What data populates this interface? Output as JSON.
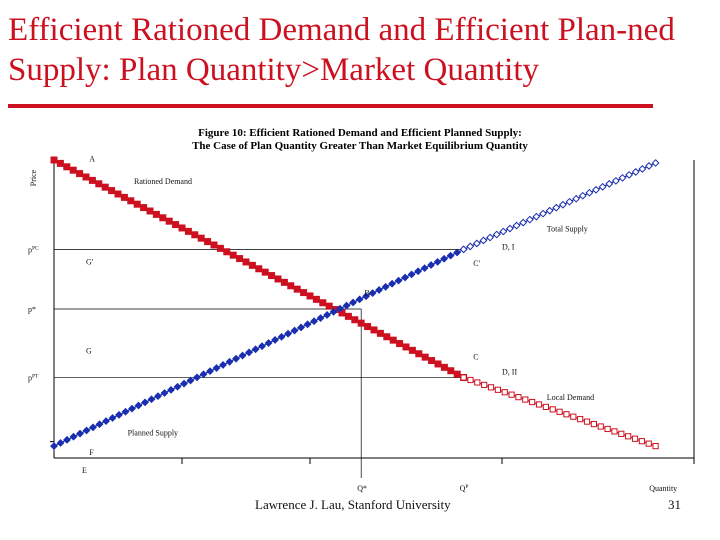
{
  "slide": {
    "title": "Efficient Rationed Demand and Efficient Plan-ned Supply: Plan Quantity>Market Quantity",
    "footer": "Lawrence J. Lau, Stanford University",
    "page_number": "31",
    "accent_color": "#cc1020"
  },
  "chart_data": {
    "type": "line",
    "title_line1": "Figure 10: Efficient Rationed Demand and Efficient Planned Supply:",
    "title_line2": "The Case of Plan Quantity Greater Than Market Equilibrium Quantity",
    "xlabel": "Quantity",
    "ylabel": "Price",
    "xlim": [
      0,
      10
    ],
    "ylim": [
      0,
      10
    ],
    "x_ticks": [
      2,
      4,
      7,
      10
    ],
    "x_tick_labels": [
      {
        "x": 0.5,
        "text": "E"
      },
      {
        "x": 4.8,
        "text": "Q*"
      },
      {
        "x": 6.4,
        "text": "Q^P"
      }
    ],
    "y_tick_labels": [
      {
        "y": 7.0,
        "text": "p^PC"
      },
      {
        "y": 5.0,
        "text": "p*"
      },
      {
        "y": 2.7,
        "text": "p^PT"
      }
    ],
    "guide_lines": [
      {
        "y": 7.0,
        "x_end": 6.4
      },
      {
        "y": 5.0,
        "x_end": 4.8
      },
      {
        "y": 2.7,
        "x_end": 6.4
      },
      {
        "x": 4.8,
        "y_end": 5.0
      }
    ],
    "series": [
      {
        "name": "Rationed Demand",
        "style": "filled-square",
        "color": "#cc1020",
        "points": [
          [
            0,
            10
          ],
          [
            6.4,
            2.7
          ]
        ]
      },
      {
        "name": "Local Demand",
        "style": "open-square",
        "color": "#cc1020",
        "points": [
          [
            6.4,
            2.7
          ],
          [
            9.4,
            0.4
          ]
        ]
      },
      {
        "name": "Planned Supply",
        "style": "filled-diamond",
        "color": "#1a2fb0",
        "points": [
          [
            0,
            0.4
          ],
          [
            6.4,
            7.0
          ]
        ]
      },
      {
        "name": "Total Supply",
        "style": "open-diamond",
        "color": "#1a2fb0",
        "points": [
          [
            6.4,
            7.0
          ],
          [
            9.4,
            9.9
          ]
        ]
      }
    ],
    "annotations": [
      {
        "text": "A",
        "x": 0.55,
        "y": 9.95
      },
      {
        "text": "Rationed Demand",
        "x": 1.25,
        "y": 9.2
      },
      {
        "text": "Total Supply",
        "x": 7.7,
        "y": 7.6
      },
      {
        "text": "D, I",
        "x": 7.0,
        "y": 7.0
      },
      {
        "text": "G'",
        "x": 0.5,
        "y": 6.5
      },
      {
        "text": "C'",
        "x": 6.55,
        "y": 6.45
      },
      {
        "text": "B",
        "x": 4.85,
        "y": 5.45
      },
      {
        "text": "G",
        "x": 0.5,
        "y": 3.5
      },
      {
        "text": "C",
        "x": 6.55,
        "y": 3.3
      },
      {
        "text": "D, II",
        "x": 7.0,
        "y": 2.8
      },
      {
        "text": "Local Demand",
        "x": 7.7,
        "y": 1.95
      },
      {
        "text": "Planned Supply",
        "x": 1.15,
        "y": 0.75
      },
      {
        "text": "F",
        "x": 0.55,
        "y": 0.1
      }
    ]
  }
}
